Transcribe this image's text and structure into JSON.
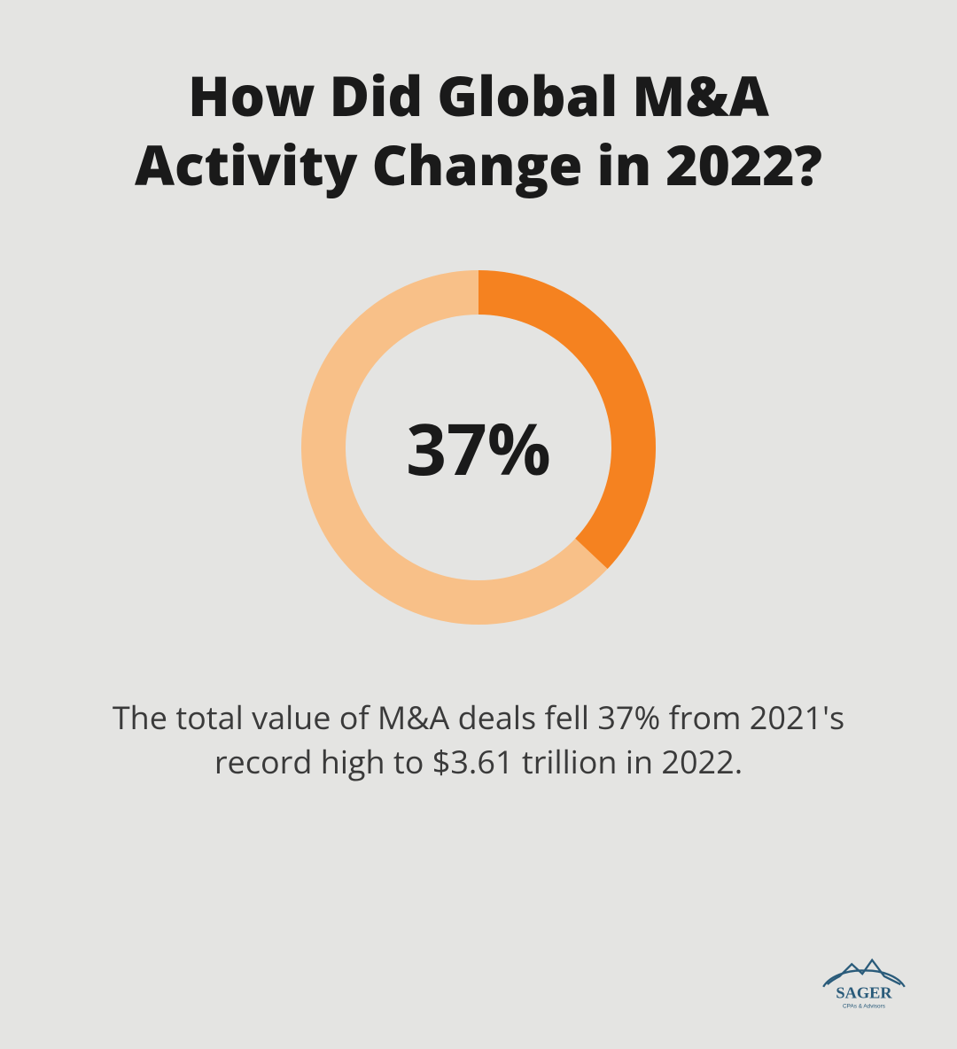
{
  "title": "How Did Global M&A Activity Change in 2022?",
  "donut": {
    "type": "donut",
    "percent": 37,
    "label": "37%",
    "outer_radius": 200,
    "stroke_width": 50,
    "primary_color": "#f58220",
    "secondary_color": "#f8c088",
    "label_fontsize": 80,
    "label_color": "#1a1a1a",
    "start_angle_deg_from_top": 0
  },
  "description": "The total value of M&A deals fell 37% from 2021's record high to $3.61 trillion in 2022.",
  "background_color": "#e4e4e2",
  "title_fontsize": 62,
  "title_color": "#1a1a1a",
  "description_fontsize": 36,
  "description_color": "#3a3a3a",
  "logo": {
    "brand": "SAGER",
    "subtext": "CPAs & Advisors",
    "color": "#2a5b7a"
  }
}
